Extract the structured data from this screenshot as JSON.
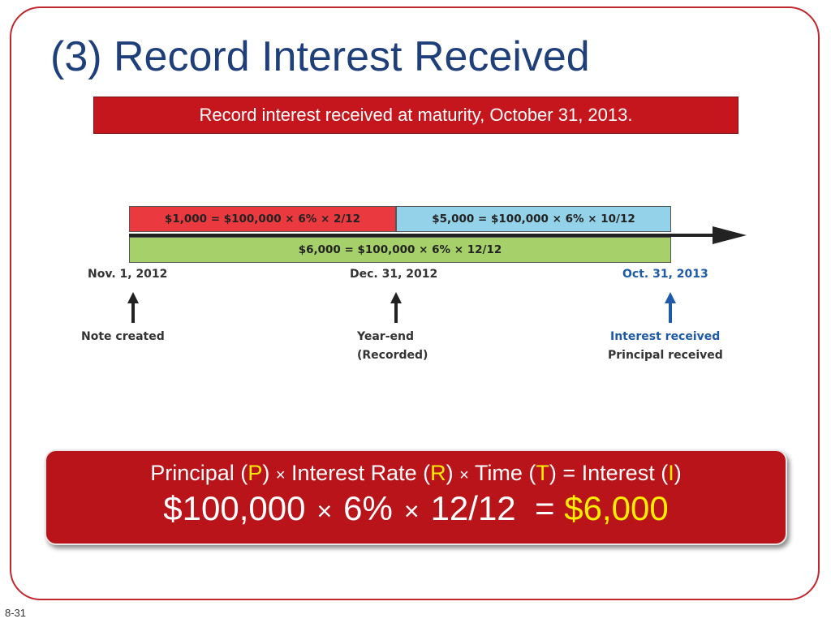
{
  "slide": {
    "title": "(3) Record Interest Received",
    "subtitle": "Record interest received at maturity, October 31, 2013.",
    "number": "8-31"
  },
  "timeline": {
    "bars": {
      "first_period": "$1,000 = $100,000 × 6% × 2/12",
      "second_period": "$5,000 = $100,000 × 6% × 10/12",
      "full_term": "$6,000 = $100,000 × 6% × 12/12"
    },
    "dates": [
      "Nov. 1, 2012",
      "Dec. 31, 2012",
      "Oct. 31, 2013"
    ],
    "events": {
      "start": "Note created",
      "year_end_line1": "Year-end",
      "year_end_line2": "(Recorded)",
      "maturity_line1": "Interest received",
      "maturity_line2": "Principal received"
    },
    "colors": {
      "first_period": "#ea3a3f",
      "second_period": "#93d2e8",
      "full_term": "#a6d16a",
      "maturity": "#1e5aa8"
    }
  },
  "formula": {
    "principal": "Principal (",
    "p": "P",
    "close1": ")",
    "times": "×",
    "rate": "Interest Rate (",
    "r": "R",
    "close2": ")",
    "time": "Time (",
    "t": "T",
    "close3": ")",
    "equals": "=",
    "interest": "Interest (",
    "i": "I",
    "close4": ")",
    "principal_value": "$100,000",
    "rate_value": "6%",
    "time_value": "12/12",
    "result": "$6,000"
  }
}
